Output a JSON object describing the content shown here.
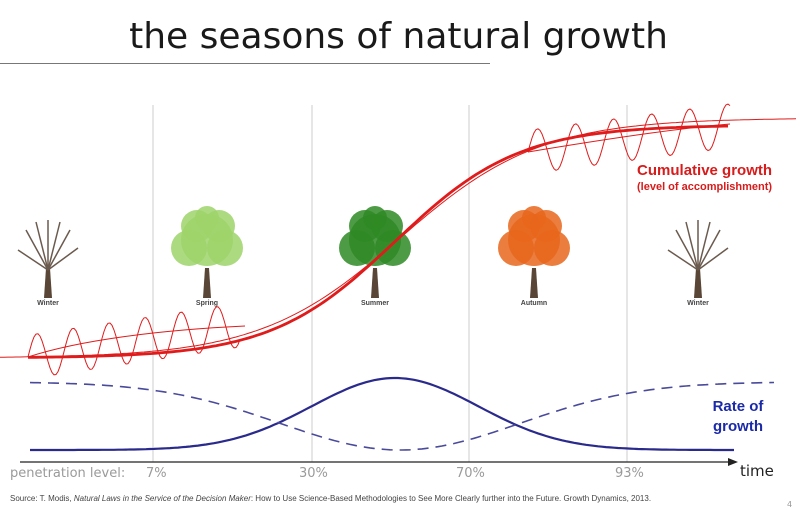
{
  "title": "the seasons of natural growth",
  "seasons": [
    "Winter",
    "Spring",
    "Summer",
    "Autumn",
    "Winter"
  ],
  "colors": {
    "cumulative": "#e01b1b",
    "rate": "#2a2a8c",
    "grid": "#cccccc",
    "winter_tree": "#6b5a4e",
    "spring_tree": "#9ed46a",
    "summer_tree": "#2f8a24",
    "autumn_tree": "#e8661c"
  },
  "labels": {
    "cumulative_main": "Cumulative growth",
    "cumulative_sub": "(level of accomplishment)",
    "rate_line1": "Rate of",
    "rate_line2": "growth",
    "penetration": "penetration level:",
    "time": "time"
  },
  "penetration_levels": [
    "7%",
    "30%",
    "70%",
    "93%"
  ],
  "source": {
    "prefix": "Source: T. Modis, ",
    "book": "Natural Laws in the Service of the Decision Maker",
    "suffix": ": How to Use Science-Based Methodologies to See More Clearly further into the Future. Growth Dynamics, 2013."
  },
  "page_number": "4"
}
